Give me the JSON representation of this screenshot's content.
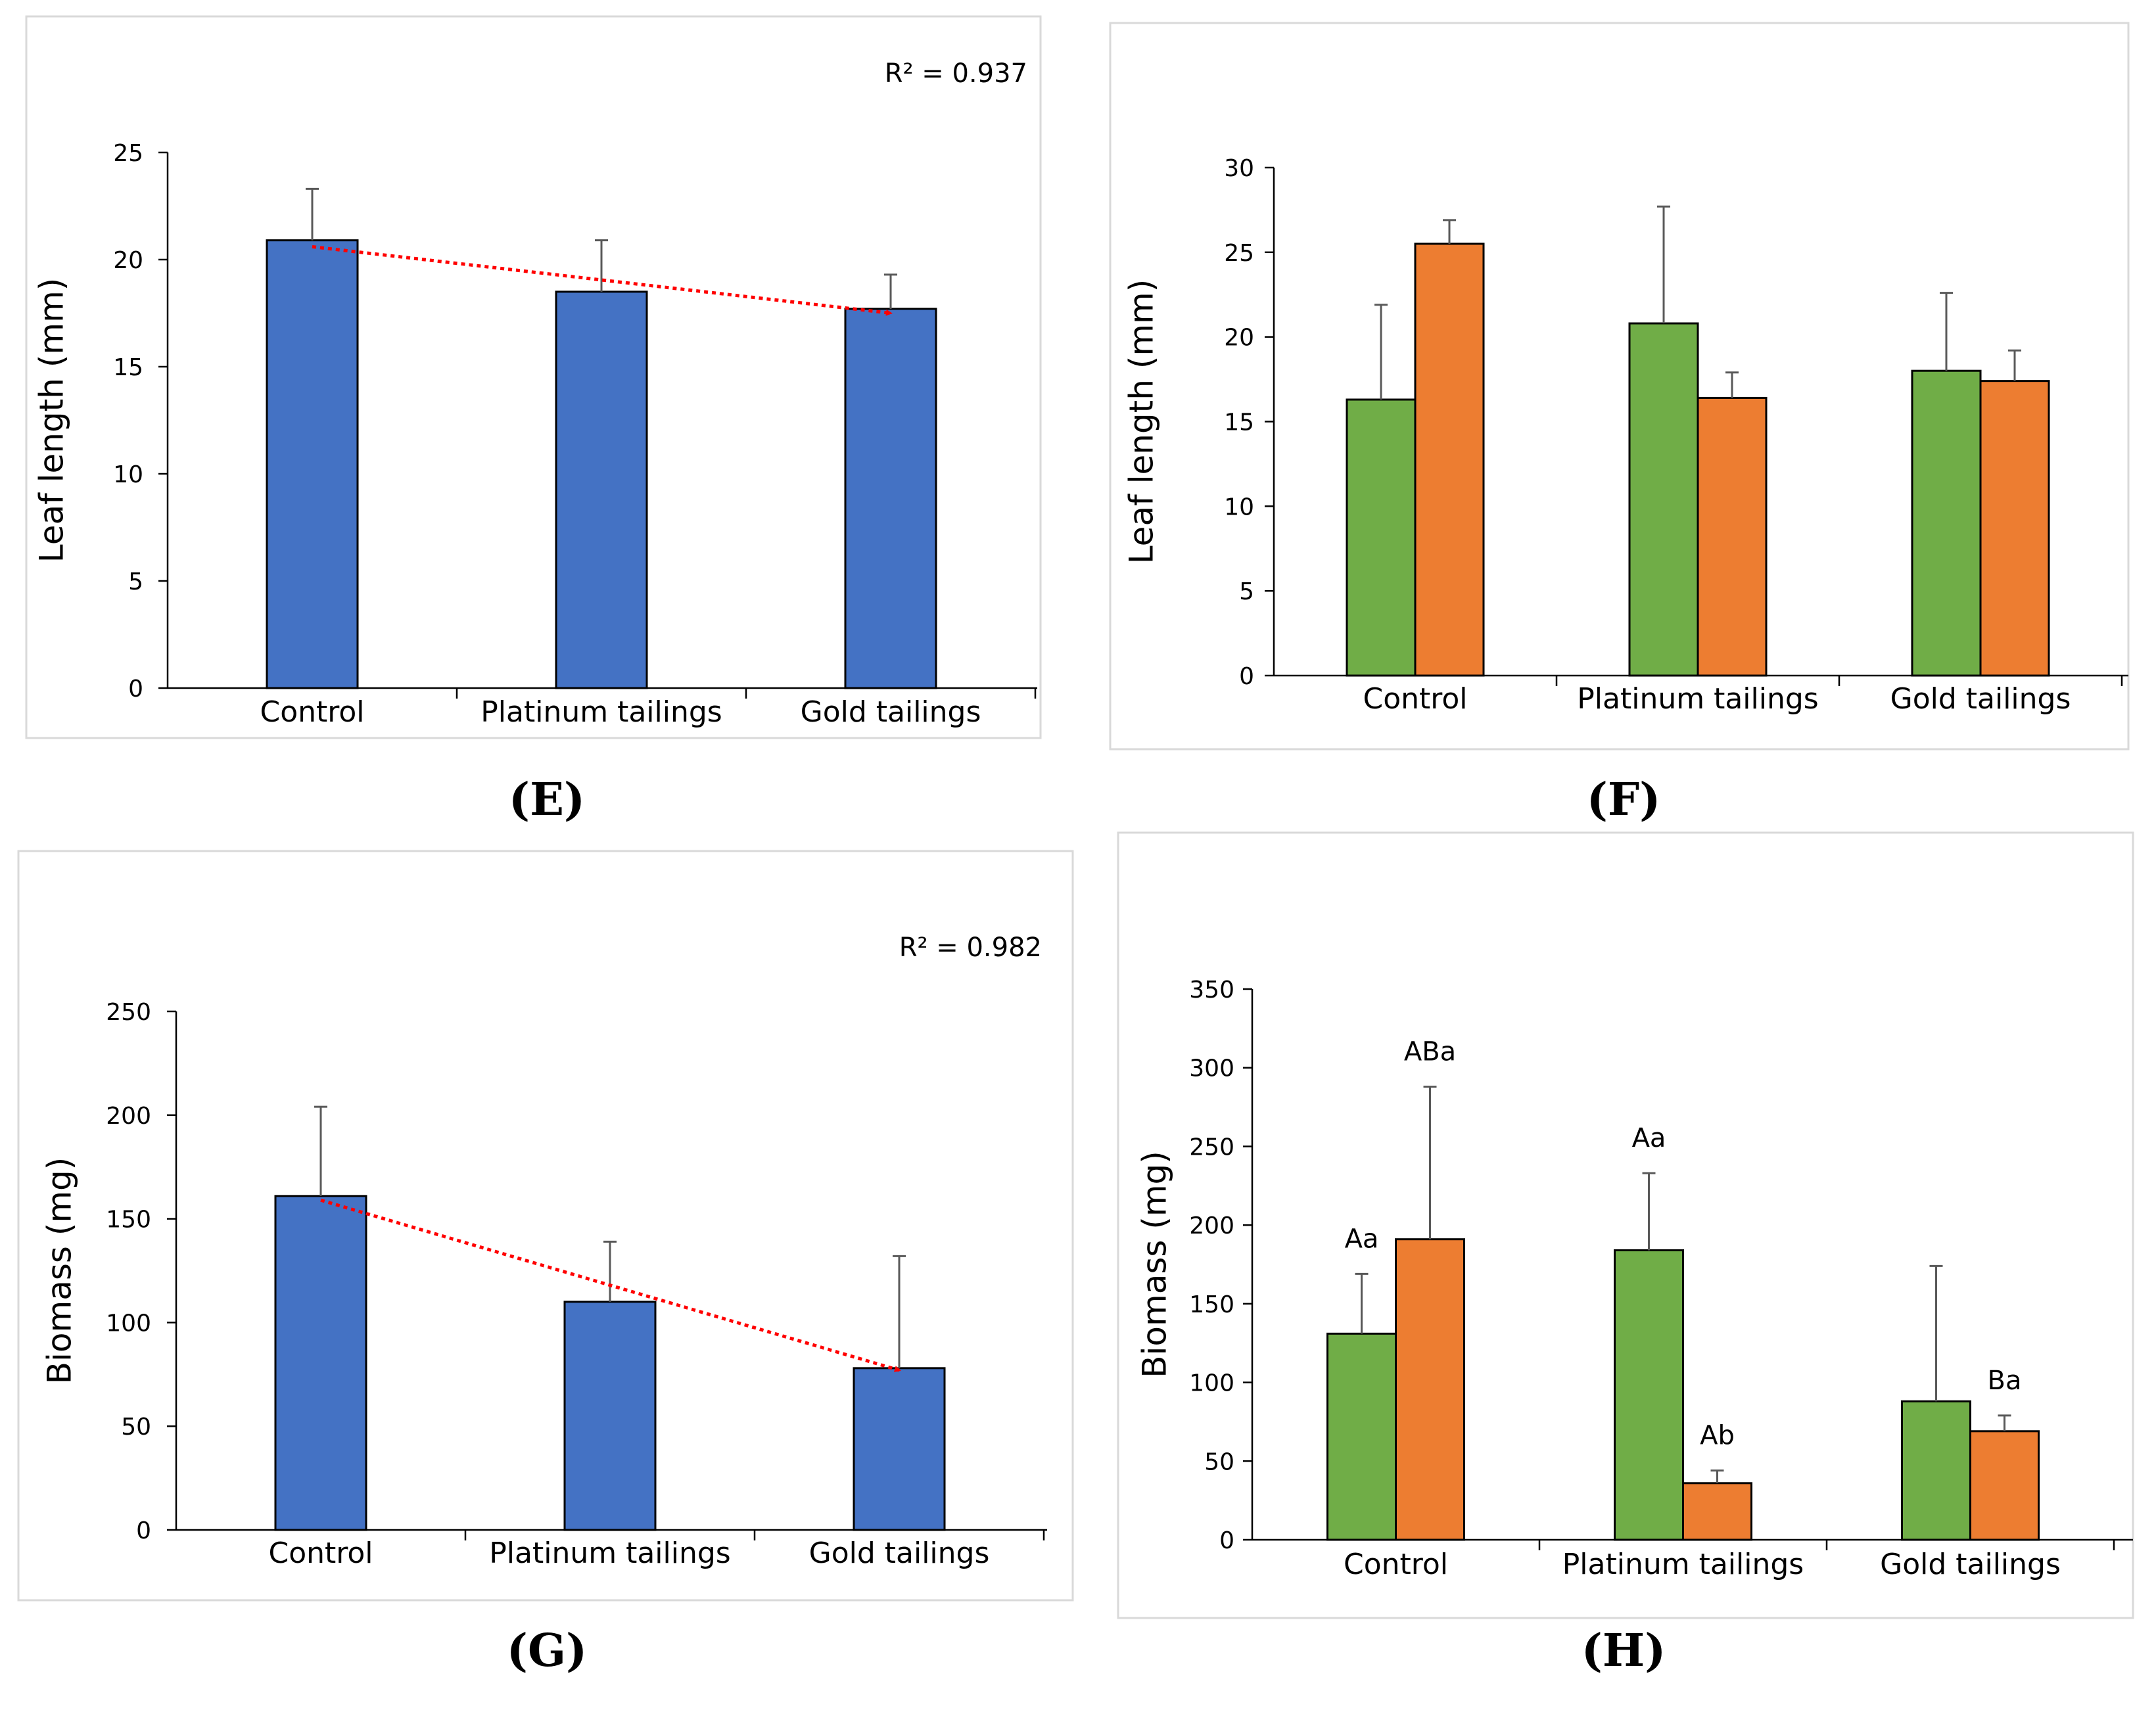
{
  "colors": {
    "single": "#4472c4",
    "green": "#70ad47",
    "orange": "#ed7d31",
    "trend": "#ff0000",
    "frame": "#d9d9d9",
    "error": "#595959"
  },
  "chart_data": [
    {
      "panel": "E",
      "panel_label": "(E)",
      "type": "bar",
      "categories": [
        "Control",
        "Platinum tailings",
        "Gold tailings"
      ],
      "series": [
        {
          "color": "#4472c4",
          "values": [
            20.9,
            18.5,
            17.7
          ],
          "errors": [
            2.4,
            2.4,
            1.6
          ]
        }
      ],
      "ylabel": "Leaf length (mm)",
      "ylim": [
        0,
        25
      ],
      "yticks": [
        0,
        5,
        10,
        15,
        20,
        25
      ],
      "trendline": {
        "style": "dotted-arrow",
        "color": "#ff0000",
        "r2_text": "R² = 0.937",
        "start": 20.6,
        "end": 17.5
      }
    },
    {
      "panel": "F",
      "panel_label": "(F)",
      "type": "bar",
      "categories": [
        "Control",
        "Platinum tailings",
        "Gold tailings"
      ],
      "series": [
        {
          "color": "#70ad47",
          "values": [
            16.3,
            20.8,
            18.0
          ],
          "errors": [
            5.6,
            6.9,
            4.6
          ]
        },
        {
          "color": "#ed7d31",
          "values": [
            25.5,
            16.4,
            17.4
          ],
          "errors": [
            1.4,
            1.5,
            1.8
          ]
        }
      ],
      "ylabel": "Leaf length (mm)",
      "ylim": [
        0,
        30
      ],
      "yticks": [
        0,
        5,
        10,
        15,
        20,
        25,
        30
      ]
    },
    {
      "panel": "G",
      "panel_label": "(G)",
      "type": "bar",
      "categories": [
        "Control",
        "Platinum tailings",
        "Gold tailings"
      ],
      "series": [
        {
          "color": "#4472c4",
          "values": [
            161,
            110,
            78
          ],
          "errors": [
            43,
            29,
            54
          ]
        }
      ],
      "ylabel": "Biomass (mg)",
      "ylim": [
        0,
        250
      ],
      "yticks": [
        0,
        50,
        100,
        150,
        200,
        250
      ],
      "trendline": {
        "style": "dotted-arrow",
        "color": "#ff0000",
        "r2_text": "R² = 0.982",
        "start": 159,
        "end": 77
      }
    },
    {
      "panel": "H",
      "panel_label": "(H)",
      "type": "bar",
      "categories": [
        "Control",
        "Platinum tailings",
        "Gold tailings"
      ],
      "series": [
        {
          "color": "#70ad47",
          "values": [
            131,
            184,
            88
          ],
          "errors": [
            38,
            49,
            86
          ],
          "labels": [
            "Aa",
            "Aa",
            ""
          ]
        },
        {
          "color": "#ed7d31",
          "values": [
            191,
            36,
            69
          ],
          "errors": [
            97,
            8,
            10
          ],
          "labels": [
            "ABa",
            "Ab",
            "Ba"
          ]
        }
      ],
      "ylabel": "Biomass (mg)",
      "ylim": [
        0,
        350
      ],
      "yticks": [
        0,
        50,
        100,
        150,
        200,
        250,
        300,
        350
      ]
    }
  ]
}
